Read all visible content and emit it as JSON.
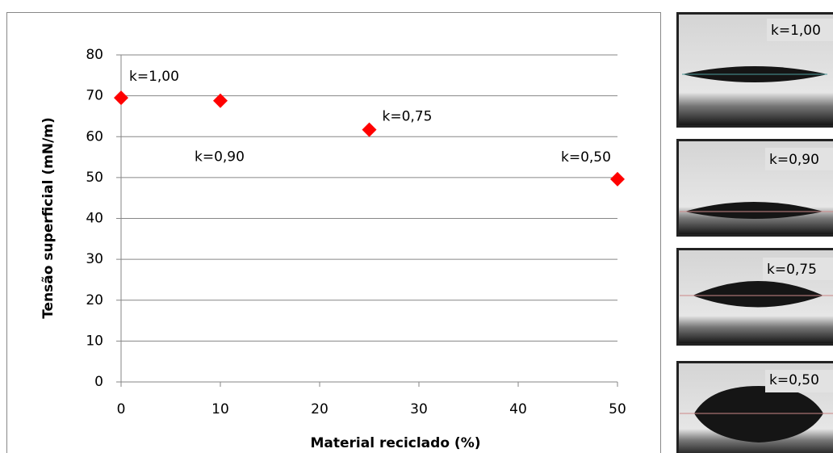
{
  "chart_data": {
    "type": "scatter",
    "x_label": "Material reciclado (%)",
    "y_label": "Tensão superficial (mN/m)",
    "x": [
      0,
      10,
      25,
      50
    ],
    "series": [
      {
        "color": "#ff0000",
        "values": [
          69.5,
          68.8,
          61.7,
          49.6
        ]
      }
    ],
    "annotations": [
      "k=1,00",
      "k=0,90",
      "k=0,75",
      "k=0,50"
    ],
    "xlim": [
      0,
      50
    ],
    "xticks": [
      0,
      10,
      20,
      30,
      40,
      50
    ],
    "ylim": [
      0,
      80
    ],
    "yticks": [
      0,
      10,
      20,
      30,
      40,
      50,
      60,
      70,
      80
    ],
    "grid": true
  },
  "images": [
    {
      "label": "k=1,00"
    },
    {
      "label": "k=0,90"
    },
    {
      "label": "k=0,75"
    },
    {
      "label": "k=0,50"
    }
  ]
}
